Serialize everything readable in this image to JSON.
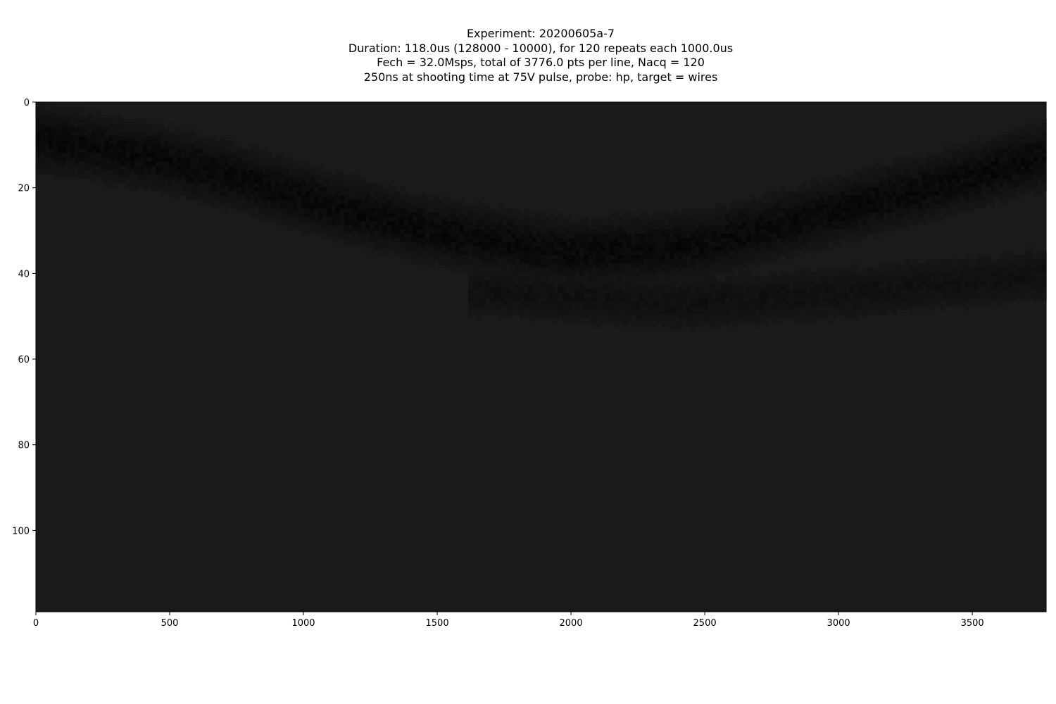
{
  "chart_data": {
    "type": "heatmap",
    "title_lines": [
      "Experiment: 20200605a-7",
      "Duration: 118.0us (128000 - 10000), for 120 repeats each 1000.0us",
      "Fech = 32.0Msps, total of 3776.0 pts per line, Nacq = 120",
      "250ns at shooting time at 75V pulse, probe: hp, target = wires"
    ],
    "xlabel": "",
    "ylabel": "",
    "xlim": [
      0,
      3776
    ],
    "ylim": [
      119,
      0
    ],
    "x_ticks": [
      0,
      500,
      1000,
      1500,
      2000,
      2500,
      3000,
      3500
    ],
    "y_ticks": [
      0,
      20,
      40,
      60,
      80,
      100
    ],
    "colormap": "gray",
    "colors": {
      "low": "#000000",
      "background": "#1a1a1a",
      "frame": "#000000"
    },
    "grid": false,
    "dark_band_centers": [
      {
        "x": 0,
        "y": 8
      },
      {
        "x": 400,
        "y": 12
      },
      {
        "x": 800,
        "y": 18
      },
      {
        "x": 1100,
        "y": 24
      },
      {
        "x": 1500,
        "y": 30
      },
      {
        "x": 2000,
        "y": 35
      },
      {
        "x": 2500,
        "y": 33
      },
      {
        "x": 3000,
        "y": 25
      },
      {
        "x": 3500,
        "y": 17
      },
      {
        "x": 3776,
        "y": 12
      }
    ],
    "secondary_band_centers": [
      {
        "x": 1700,
        "y": 44
      },
      {
        "x": 2400,
        "y": 47
      },
      {
        "x": 3100,
        "y": 44
      },
      {
        "x": 3776,
        "y": 40
      }
    ]
  }
}
